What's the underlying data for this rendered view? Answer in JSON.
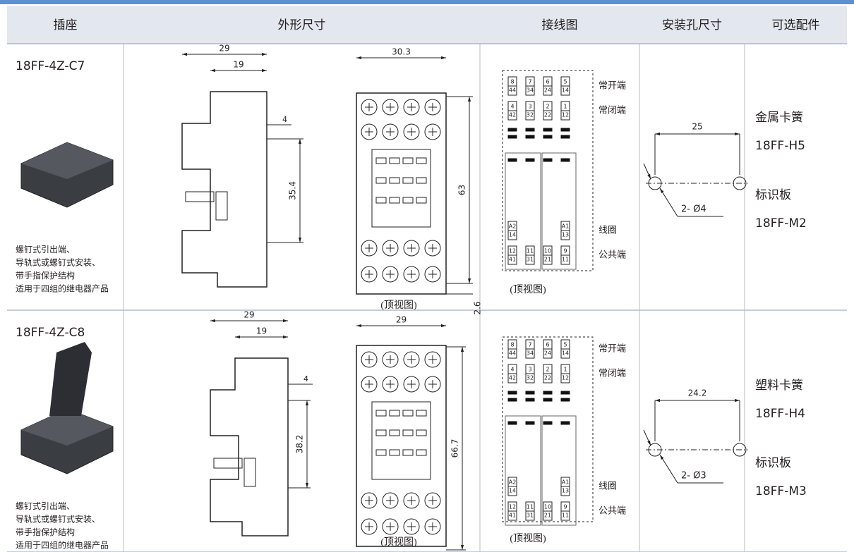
{
  "table": {
    "headers": [
      "插座",
      "外形尺寸",
      "接线图",
      "安装孔尺寸",
      "可选配件"
    ],
    "rows": [
      {
        "model": "18FF-4Z-C7",
        "features": [
          "螺钉式引出端、",
          "导轨式或螺钉式安装、",
          "带手指保护结构",
          "适用于四组的继电器产品"
        ],
        "side_dims": [
          "29",
          "19",
          "4",
          "35.4"
        ],
        "top_dims": [
          "30.3",
          "63",
          "2.6"
        ],
        "top_caption": "(顶视图)",
        "wiring": {
          "no": [
            [
              "8",
              "44"
            ],
            [
              "7",
              "34"
            ],
            [
              "6",
              "24"
            ],
            [
              "5",
              "14"
            ]
          ],
          "nc": [
            [
              "4",
              "42"
            ],
            [
              "3",
              "32"
            ],
            [
              "2",
              "22"
            ],
            [
              "1",
              "12"
            ]
          ],
          "coil": [
            [
              "A2",
              "14"
            ],
            [
              "A1",
              "13"
            ]
          ],
          "common": [
            [
              "12",
              "41"
            ],
            [
              "11",
              "31"
            ],
            [
              "10",
              "21"
            ],
            [
              "9",
              "11"
            ]
          ],
          "labels": [
            "常开端",
            "常闭端",
            "线圈",
            "公共端"
          ],
          "caption": "(顶视图)"
        },
        "mounting": {
          "spacing": "25",
          "hole": "2- Ø4"
        },
        "accessories": [
          "金属卡簧",
          "18FF-H5",
          "标识板",
          "18FF-M2"
        ]
      },
      {
        "model": "18FF-4Z-C8",
        "features": [
          "螺钉式引出端、",
          "导轨式或螺钉式安装、",
          "带手指保护结构",
          "适用于四组的继电器产品"
        ],
        "side_dims": [
          "29",
          "19",
          "4",
          "38.2"
        ],
        "top_dims": [
          "29",
          "66.7"
        ],
        "top_caption": "(顶视图)",
        "wiring": {
          "no": [
            [
              "8",
              "44"
            ],
            [
              "7",
              "34"
            ],
            [
              "6",
              "24"
            ],
            [
              "5",
              "14"
            ]
          ],
          "nc": [
            [
              "4",
              "42"
            ],
            [
              "3",
              "32"
            ],
            [
              "2",
              "22"
            ],
            [
              "1",
              "12"
            ]
          ],
          "coil": [
            [
              "A2",
              "14"
            ],
            [
              "A1",
              "13"
            ]
          ],
          "common": [
            [
              "12",
              "41"
            ],
            [
              "11",
              "31"
            ],
            [
              "10",
              "21"
            ],
            [
              "9",
              "11"
            ]
          ],
          "labels": [
            "常开端",
            "常闭端",
            "线圈",
            "公共端"
          ],
          "caption": "(顶视图)"
        },
        "mounting": {
          "spacing": "24.2",
          "hole": "2- Ø3"
        },
        "accessories": [
          "塑料卡簧",
          "18FF-H4",
          "标识板",
          "18FF-M3"
        ]
      }
    ]
  }
}
